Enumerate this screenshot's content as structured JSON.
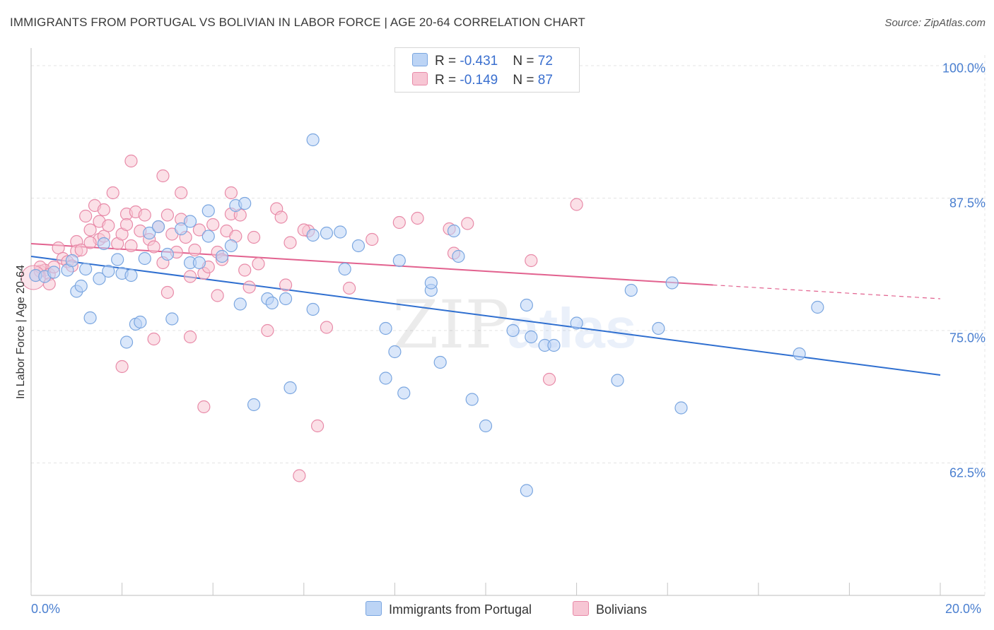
{
  "title": "IMMIGRANTS FROM PORTUGAL VS BOLIVIAN IN LABOR FORCE | AGE 20-64 CORRELATION CHART",
  "source": "Source: ZipAtlas.com",
  "watermark": {
    "zip": "ZIP",
    "atlas": "atlas"
  },
  "colors": {
    "blue_fill": "#bcd4f5",
    "blue_stroke": "#7aa6e0",
    "blue_line": "#2f6fd0",
    "pink_fill": "#f7c6d4",
    "pink_stroke": "#e88aa8",
    "pink_line": "#e2628f",
    "axis_text": "#4a7fd0",
    "grid": "#e3e3e3"
  },
  "legend_stats": [
    {
      "r_label": "R = ",
      "r_value": "-0.431",
      "n_label": "N = ",
      "n_value": "72"
    },
    {
      "r_label": "R = ",
      "r_value": "-0.149",
      "n_label": "N = ",
      "n_value": "87"
    }
  ],
  "chart_data": {
    "type": "scatter",
    "title": "IMMIGRANTS FROM PORTUGAL VS BOLIVIAN IN LABOR FORCE | AGE 20-64 CORRELATION CHART",
    "xlabel": "",
    "ylabel": "In Labor Force | Age 20-64",
    "xlim": [
      0,
      20
    ],
    "ylim": [
      50,
      101
    ],
    "x_tick_labels": [
      "0.0%",
      "20.0%"
    ],
    "y_ticks": [
      62.5,
      75.0,
      87.5,
      100.0
    ],
    "y_tick_labels": [
      "62.5%",
      "75.0%",
      "87.5%",
      "100.0%"
    ],
    "legend": [
      "Immigrants from Portugal",
      "Bolivians"
    ],
    "series": [
      {
        "name": "Immigrants from Portugal",
        "color": "#7aa6e0",
        "trend": {
          "x": [
            0,
            20
          ],
          "y": [
            82.0,
            70.8
          ]
        },
        "points": [
          [
            0.1,
            80.2
          ],
          [
            0.3,
            80.1
          ],
          [
            0.5,
            80.5
          ],
          [
            0.8,
            80.7
          ],
          [
            0.9,
            81.6
          ],
          [
            1.0,
            78.7
          ],
          [
            1.1,
            79.2
          ],
          [
            1.2,
            80.8
          ],
          [
            1.3,
            76.2
          ],
          [
            1.5,
            79.9
          ],
          [
            1.6,
            83.2
          ],
          [
            1.7,
            80.6
          ],
          [
            1.9,
            81.7
          ],
          [
            2.0,
            80.4
          ],
          [
            2.1,
            73.9
          ],
          [
            2.2,
            80.2
          ],
          [
            2.3,
            75.6
          ],
          [
            2.5,
            81.8
          ],
          [
            2.6,
            84.2
          ],
          [
            2.8,
            84.8
          ],
          [
            3.1,
            76.1
          ],
          [
            3.3,
            84.6
          ],
          [
            3.5,
            85.3
          ],
          [
            3.5,
            81.4
          ],
          [
            3.7,
            81.4
          ],
          [
            3.9,
            83.9
          ],
          [
            3.9,
            86.3
          ],
          [
            4.2,
            82.0
          ],
          [
            4.4,
            83.0
          ],
          [
            4.5,
            86.8
          ],
          [
            4.6,
            77.5
          ],
          [
            4.7,
            87.0
          ],
          [
            4.9,
            68.0
          ],
          [
            5.2,
            78.0
          ],
          [
            5.6,
            78.0
          ],
          [
            5.7,
            69.6
          ],
          [
            6.2,
            93.0
          ],
          [
            6.2,
            84.0
          ],
          [
            6.2,
            77.0
          ],
          [
            6.5,
            84.2
          ],
          [
            6.8,
            84.3
          ],
          [
            6.9,
            80.8
          ],
          [
            7.2,
            83.0
          ],
          [
            7.8,
            70.5
          ],
          [
            7.8,
            75.2
          ],
          [
            8.0,
            73.0
          ],
          [
            8.1,
            81.6
          ],
          [
            8.2,
            69.1
          ],
          [
            8.8,
            78.8
          ],
          [
            8.8,
            79.5
          ],
          [
            9.3,
            84.4
          ],
          [
            9.4,
            82.0
          ],
          [
            9.7,
            68.5
          ],
          [
            10.0,
            66.0
          ],
          [
            10.6,
            75.0
          ],
          [
            10.9,
            77.4
          ],
          [
            11.0,
            74.4
          ],
          [
            11.3,
            73.6
          ],
          [
            11.5,
            73.6
          ],
          [
            12.0,
            75.7
          ],
          [
            13.2,
            78.8
          ],
          [
            13.8,
            75.2
          ],
          [
            14.1,
            79.5
          ],
          [
            14.3,
            67.7
          ],
          [
            16.9,
            72.8
          ],
          [
            17.3,
            77.2
          ],
          [
            12.9,
            70.3
          ],
          [
            9.0,
            72.0
          ],
          [
            3.0,
            82.2
          ],
          [
            2.4,
            75.8
          ],
          [
            5.3,
            77.6
          ],
          [
            10.9,
            59.9
          ]
        ]
      },
      {
        "name": "Bolivians",
        "color": "#e88aa8",
        "trend": {
          "x": [
            0,
            15
          ],
          "y": [
            83.2,
            79.3
          ]
        },
        "trend_dashed": {
          "x": [
            15,
            20
          ],
          "y": [
            79.3,
            78.0
          ]
        },
        "points": [
          [
            0.1,
            80.2
          ],
          [
            0.2,
            80.6
          ],
          [
            0.3,
            80.7
          ],
          [
            0.4,
            80.3
          ],
          [
            0.5,
            81.0
          ],
          [
            0.6,
            82.8
          ],
          [
            0.7,
            81.8
          ],
          [
            0.8,
            81.5
          ],
          [
            0.9,
            81.1
          ],
          [
            1.0,
            83.4
          ],
          [
            1.0,
            82.5
          ],
          [
            1.1,
            82.6
          ],
          [
            1.2,
            85.8
          ],
          [
            1.3,
            84.5
          ],
          [
            1.4,
            86.8
          ],
          [
            1.5,
            85.3
          ],
          [
            1.5,
            83.6
          ],
          [
            1.6,
            83.9
          ],
          [
            1.7,
            84.9
          ],
          [
            1.8,
            88.0
          ],
          [
            1.9,
            83.2
          ],
          [
            2.0,
            84.1
          ],
          [
            2.1,
            86.0
          ],
          [
            2.2,
            83.0
          ],
          [
            2.3,
            86.2
          ],
          [
            2.4,
            84.4
          ],
          [
            2.5,
            85.9
          ],
          [
            2.6,
            83.6
          ],
          [
            2.7,
            82.9
          ],
          [
            2.8,
            84.8
          ],
          [
            2.9,
            89.6
          ],
          [
            3.0,
            85.9
          ],
          [
            3.1,
            84.1
          ],
          [
            3.2,
            82.4
          ],
          [
            3.3,
            85.5
          ],
          [
            3.4,
            83.8
          ],
          [
            3.5,
            80.1
          ],
          [
            3.6,
            82.6
          ],
          [
            3.7,
            84.5
          ],
          [
            3.8,
            80.4
          ],
          [
            3.9,
            81.0
          ],
          [
            4.0,
            85.0
          ],
          [
            4.1,
            82.4
          ],
          [
            4.2,
            81.7
          ],
          [
            4.3,
            84.4
          ],
          [
            4.4,
            86.0
          ],
          [
            4.5,
            83.9
          ],
          [
            4.6,
            85.9
          ],
          [
            4.7,
            80.7
          ],
          [
            4.8,
            79.1
          ],
          [
            4.9,
            83.8
          ],
          [
            5.0,
            81.3
          ],
          [
            5.2,
            75.0
          ],
          [
            5.4,
            86.5
          ],
          [
            5.5,
            85.7
          ],
          [
            5.7,
            83.3
          ],
          [
            5.9,
            61.3
          ],
          [
            6.1,
            84.4
          ],
          [
            6.3,
            66.0
          ],
          [
            6.5,
            75.3
          ],
          [
            7.0,
            79.0
          ],
          [
            7.5,
            83.6
          ],
          [
            8.1,
            85.2
          ],
          [
            8.5,
            85.6
          ],
          [
            9.2,
            84.6
          ],
          [
            9.3,
            82.3
          ],
          [
            9.6,
            85.1
          ],
          [
            11.0,
            81.6
          ],
          [
            11.4,
            70.4
          ],
          [
            12.0,
            86.9
          ],
          [
            2.0,
            71.6
          ],
          [
            2.7,
            74.2
          ],
          [
            3.8,
            67.8
          ],
          [
            4.1,
            78.3
          ],
          [
            3.3,
            88.0
          ],
          [
            2.2,
            91.0
          ],
          [
            4.4,
            88.0
          ],
          [
            1.3,
            83.3
          ],
          [
            2.1,
            85.0
          ],
          [
            0.4,
            79.4
          ],
          [
            0.2,
            81.0
          ],
          [
            1.6,
            86.4
          ],
          [
            2.9,
            81.4
          ],
          [
            3.5,
            74.4
          ],
          [
            5.6,
            79.3
          ],
          [
            3.0,
            78.6
          ],
          [
            6.0,
            84.5
          ]
        ]
      }
    ]
  }
}
